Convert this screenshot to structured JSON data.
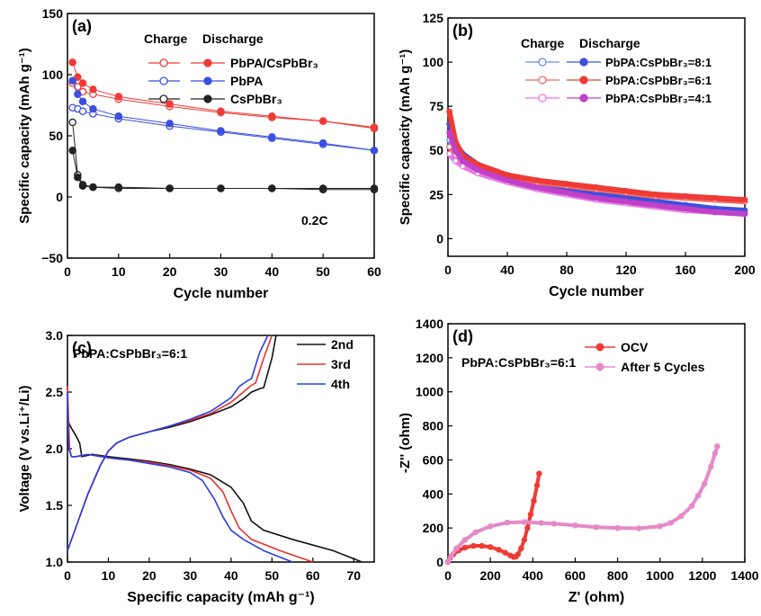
{
  "chart_data": [
    {
      "panel": "(a)",
      "type": "scatter",
      "xlabel": "Cycle number",
      "ylabel": "Specific capacity (mAh g⁻¹)",
      "xlim": [
        0,
        60
      ],
      "ylim": [
        -50,
        150
      ],
      "xticks": [
        "0",
        "10",
        "20",
        "30",
        "40",
        "50",
        "60"
      ],
      "yticks": [
        "−50",
        "0",
        "50",
        "100",
        "150"
      ],
      "xtick_values": [
        0,
        10,
        20,
        30,
        40,
        50,
        60
      ],
      "ytick_values": [
        -50,
        0,
        50,
        100,
        150
      ],
      "legend_header": [
        "Charge",
        "Discharge"
      ],
      "annotation": "0.2C",
      "series": [
        {
          "name": "PbPA/CsPbBr₃",
          "kind": "charge",
          "color": "#ef3b36",
          "x": [
            1,
            2,
            3,
            5,
            10,
            20,
            30,
            40,
            50,
            60
          ],
          "y": [
            93,
            90,
            86,
            84,
            80,
            74,
            69,
            65,
            62,
            57
          ]
        },
        {
          "name": "PbPA/CsPbBr₃",
          "kind": "discharge",
          "color": "#ef3b36",
          "x": [
            1,
            2,
            3,
            5,
            10,
            20,
            30,
            40,
            50,
            60
          ],
          "y": [
            110,
            98,
            93,
            88,
            82,
            76,
            70,
            66,
            62,
            56
          ]
        },
        {
          "name": "PbPA",
          "kind": "charge",
          "color": "#3b4fe0",
          "x": [
            1,
            2,
            3,
            5,
            10,
            20,
            30,
            40,
            50,
            60
          ],
          "y": [
            73,
            72,
            70,
            68,
            64,
            58,
            53,
            48,
            43,
            38
          ]
        },
        {
          "name": "PbPA",
          "kind": "discharge",
          "color": "#3b4fe0",
          "x": [
            1,
            2,
            3,
            5,
            10,
            20,
            30,
            40,
            50,
            60
          ],
          "y": [
            95,
            84,
            78,
            72,
            66,
            60,
            54,
            49,
            44,
            38
          ]
        },
        {
          "name": "CsPbBr₃",
          "kind": "charge",
          "color": "#222222",
          "x": [
            1,
            2,
            3,
            5,
            10,
            20,
            30,
            40,
            50,
            60
          ],
          "y": [
            61,
            18,
            10,
            8,
            7,
            7,
            7,
            7,
            6,
            6
          ]
        },
        {
          "name": "CsPbBr₃",
          "kind": "discharge",
          "color": "#222222",
          "x": [
            1,
            2,
            3,
            5,
            10,
            20,
            30,
            40,
            50,
            60
          ],
          "y": [
            38,
            16,
            9,
            8,
            8,
            7,
            7,
            7,
            7,
            7
          ]
        }
      ]
    },
    {
      "panel": "(b)",
      "type": "scatter",
      "xlabel": "Cycle number",
      "ylabel": "Specific capacity (mAh g⁻¹)",
      "xlim": [
        0,
        200
      ],
      "ylim": [
        -10,
        125
      ],
      "xticks": [
        "0",
        "40",
        "80",
        "120",
        "160",
        "200"
      ],
      "yticks": [
        "0",
        "25",
        "50",
        "75",
        "100",
        "125"
      ],
      "xtick_values": [
        0,
        40,
        80,
        120,
        160,
        200
      ],
      "ytick_values": [
        0,
        25,
        50,
        75,
        100,
        125
      ],
      "legend_header": [
        "Charge",
        "Discharge"
      ],
      "series": [
        {
          "name": "PbPA:CsPbBr₃=8:1",
          "kind": "charge",
          "color": "#6a8ce8",
          "x": [
            1,
            5,
            10,
            20,
            40,
            60,
            80,
            100,
            120,
            140,
            160,
            180,
            200
          ],
          "y": [
            56,
            48,
            44,
            40,
            35,
            31,
            28,
            25,
            23,
            20,
            18,
            16,
            15
          ]
        },
        {
          "name": "PbPA:CsPbBr₃=8:1",
          "kind": "discharge",
          "color": "#3b4fe0",
          "x": [
            1,
            5,
            10,
            20,
            40,
            60,
            80,
            100,
            120,
            140,
            160,
            180,
            200
          ],
          "y": [
            65,
            54,
            48,
            42,
            36,
            32,
            28,
            25,
            23,
            21,
            19,
            17,
            16
          ]
        },
        {
          "name": "PbPA:CsPbBr₃=6:1",
          "kind": "charge",
          "color": "#ef6b66",
          "x": [
            1,
            5,
            10,
            20,
            40,
            60,
            80,
            100,
            120,
            140,
            160,
            180,
            200
          ],
          "y": [
            52,
            47,
            43,
            40,
            35,
            32,
            30,
            28,
            26,
            24,
            23,
            22,
            21
          ]
        },
        {
          "name": "PbPA:CsPbBr₃=6:1",
          "kind": "discharge",
          "color": "#ef3b36",
          "x": [
            1,
            5,
            10,
            20,
            40,
            60,
            80,
            100,
            120,
            140,
            160,
            180,
            200
          ],
          "y": [
            72,
            55,
            47,
            42,
            36,
            33,
            31,
            29,
            27,
            25,
            24,
            23,
            22
          ]
        },
        {
          "name": "PbPA:CsPbBr₃=4:1",
          "kind": "charge",
          "color": "#e678e6",
          "x": [
            1,
            5,
            10,
            20,
            40,
            60,
            80,
            100,
            120,
            140,
            160,
            180,
            200
          ],
          "y": [
            48,
            44,
            41,
            37,
            32,
            28,
            25,
            22,
            20,
            18,
            16,
            15,
            14
          ]
        },
        {
          "name": "PbPA:CsPbBr₃=4:1",
          "kind": "discharge",
          "color": "#c040c8",
          "x": [
            1,
            5,
            10,
            20,
            40,
            60,
            80,
            100,
            120,
            140,
            160,
            180,
            200
          ],
          "y": [
            60,
            50,
            44,
            39,
            33,
            29,
            26,
            23,
            21,
            19,
            17,
            15,
            14
          ]
        }
      ]
    },
    {
      "panel": "(c)",
      "type": "line",
      "title": "PbPA:CsPbBr₃=6:1",
      "xlabel": "Specific capacity (mAh g⁻¹)",
      "ylabel": "Voltage (V vs.Li⁺/Li)",
      "xlim": [
        0,
        75
      ],
      "ylim": [
        1.0,
        3.0
      ],
      "xticks": [
        "0",
        "10",
        "20",
        "30",
        "40",
        "50",
        "60",
        "70"
      ],
      "yticks": [
        "1.0",
        "1.5",
        "2.0",
        "2.5",
        "3.0"
      ],
      "xtick_values": [
        0,
        10,
        20,
        30,
        40,
        50,
        60,
        70
      ],
      "ytick_values": [
        1.0,
        1.5,
        2.0,
        2.5,
        3.0
      ],
      "series": [
        {
          "name": "2nd",
          "color": "#111111",
          "discharge": {
            "x": [
              0,
              1,
              2,
              3,
              3.5,
              6,
              10,
              15,
              20,
              25,
              30,
              35,
              40,
              43,
              45,
              48,
              55,
              65,
              72
            ],
            "y": [
              2.25,
              2.18,
              2.12,
              2.05,
              1.93,
              1.95,
              1.93,
              1.91,
              1.89,
              1.86,
              1.82,
              1.77,
              1.66,
              1.52,
              1.36,
              1.28,
              1.2,
              1.1,
              1.0
            ]
          },
          "charge": {
            "x": [
              3,
              5,
              8,
              10,
              12,
              15,
              20,
              25,
              30,
              35,
              40,
              43,
              45,
              47,
              48,
              50,
              51
            ],
            "y": [
              1.4,
              1.6,
              1.85,
              1.98,
              2.05,
              2.1,
              2.15,
              2.19,
              2.24,
              2.3,
              2.37,
              2.44,
              2.5,
              2.53,
              2.54,
              2.8,
              3.0
            ]
          }
        },
        {
          "name": "3rd",
          "color": "#e8312c",
          "discharge": {
            "x": [
              0,
              0.5,
              1,
              2,
              5,
              10,
              15,
              20,
              25,
              30,
              35,
              38,
              40,
              42,
              45,
              52,
              60
            ],
            "y": [
              2.55,
              2.0,
              1.93,
              1.93,
              1.95,
              1.92,
              1.9,
              1.88,
              1.85,
              1.81,
              1.74,
              1.62,
              1.45,
              1.3,
              1.2,
              1.1,
              1.0
            ]
          },
          "charge": {
            "x": [
              0,
              2,
              5,
              8,
              10,
              12,
              15,
              20,
              25,
              30,
              35,
              40,
              43,
              45,
              46,
              48,
              50
            ],
            "y": [
              1.1,
              1.3,
              1.6,
              1.85,
              1.98,
              2.05,
              2.1,
              2.15,
              2.2,
              2.25,
              2.31,
              2.41,
              2.5,
              2.56,
              2.58,
              2.8,
              3.0
            ]
          }
        },
        {
          "name": "4th",
          "color": "#2c3ee0",
          "discharge": {
            "x": [
              0,
              0.3,
              1,
              2,
              5,
              10,
              15,
              20,
              25,
              30,
              33,
              36,
              38,
              40,
              43,
              48,
              55
            ],
            "y": [
              2.5,
              2.0,
              1.93,
              1.93,
              1.95,
              1.92,
              1.9,
              1.87,
              1.84,
              1.79,
              1.72,
              1.55,
              1.4,
              1.28,
              1.2,
              1.1,
              1.0
            ]
          },
          "charge": {
            "x": [
              0,
              2,
              5,
              8,
              10,
              12,
              15,
              20,
              25,
              30,
              35,
              40,
              42,
              44,
              45,
              47,
              49
            ],
            "y": [
              1.1,
              1.3,
              1.6,
              1.85,
              1.98,
              2.05,
              2.1,
              2.15,
              2.2,
              2.26,
              2.33,
              2.45,
              2.55,
              2.6,
              2.62,
              2.85,
              3.0
            ]
          }
        }
      ]
    },
    {
      "panel": "(d)",
      "type": "scatter",
      "title": "PbPA:CsPbBr₃=6:1",
      "xlabel": "Z' (ohm)",
      "ylabel": "-Z'' (ohm)",
      "xlim": [
        0,
        1400
      ],
      "ylim": [
        0,
        1400
      ],
      "xticks": [
        "0",
        "200",
        "400",
        "600",
        "800",
        "1000",
        "1200",
        "1400"
      ],
      "yticks": [
        "0",
        "200",
        "400",
        "600",
        "800",
        "1000",
        "1200",
        "1400"
      ],
      "xtick_values": [
        0,
        200,
        400,
        600,
        800,
        1000,
        1200,
        1400
      ],
      "ytick_values": [
        0,
        200,
        400,
        600,
        800,
        1000,
        1200,
        1400
      ],
      "series": [
        {
          "name": "OCV",
          "color": "#ef3b36",
          "marker": "circle-filled",
          "x": [
            0,
            10,
            25,
            50,
            80,
            120,
            160,
            200,
            240,
            270,
            295,
            310,
            320,
            330,
            345,
            360,
            375,
            390,
            405,
            420,
            430
          ],
          "y": [
            0,
            25,
            45,
            68,
            85,
            95,
            95,
            88,
            72,
            55,
            38,
            30,
            32,
            45,
            80,
            130,
            200,
            280,
            360,
            450,
            520
          ]
        },
        {
          "name": "After 5 Cycles",
          "color": "#e58ac8",
          "marker": "circle-filled",
          "x": [
            0,
            15,
            40,
            80,
            130,
            200,
            280,
            360,
            440,
            500,
            600,
            700,
            800,
            900,
            1000,
            1050,
            1100,
            1150,
            1180,
            1210,
            1240,
            1260,
            1270
          ],
          "y": [
            0,
            35,
            80,
            130,
            175,
            210,
            232,
            235,
            230,
            225,
            215,
            205,
            200,
            198,
            210,
            230,
            270,
            330,
            390,
            460,
            560,
            640,
            680
          ]
        }
      ]
    }
  ]
}
